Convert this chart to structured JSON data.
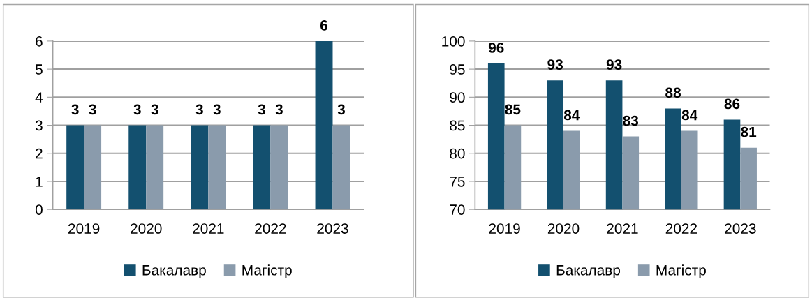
{
  "chart_data": [
    {
      "type": "bar",
      "categories": [
        "2019",
        "2020",
        "2021",
        "2022",
        "2023"
      ],
      "series": [
        {
          "name": "Бакалавр",
          "color": "#13506f",
          "values": [
            3,
            3,
            3,
            3,
            6
          ]
        },
        {
          "name": "Магістр",
          "color": "#8a9bac",
          "values": [
            3,
            3,
            3,
            3,
            3
          ]
        }
      ],
      "ylim": [
        0,
        6
      ],
      "yticks": [
        0,
        1,
        2,
        3,
        4,
        5,
        6
      ],
      "grid": "y",
      "legend": "bottom",
      "data_labels": true
    },
    {
      "type": "bar",
      "categories": [
        "2019",
        "2020",
        "2021",
        "2022",
        "2023"
      ],
      "series": [
        {
          "name": "Бакалавр",
          "color": "#13506f",
          "values": [
            96,
            93,
            93,
            88,
            86
          ]
        },
        {
          "name": "Магістр",
          "color": "#8a9bac",
          "values": [
            85,
            84,
            83,
            84,
            81
          ]
        }
      ],
      "ylim": [
        70,
        100
      ],
      "yticks": [
        70,
        75,
        80,
        85,
        90,
        95,
        100
      ],
      "grid": "y",
      "legend": "bottom",
      "data_labels": true
    }
  ]
}
